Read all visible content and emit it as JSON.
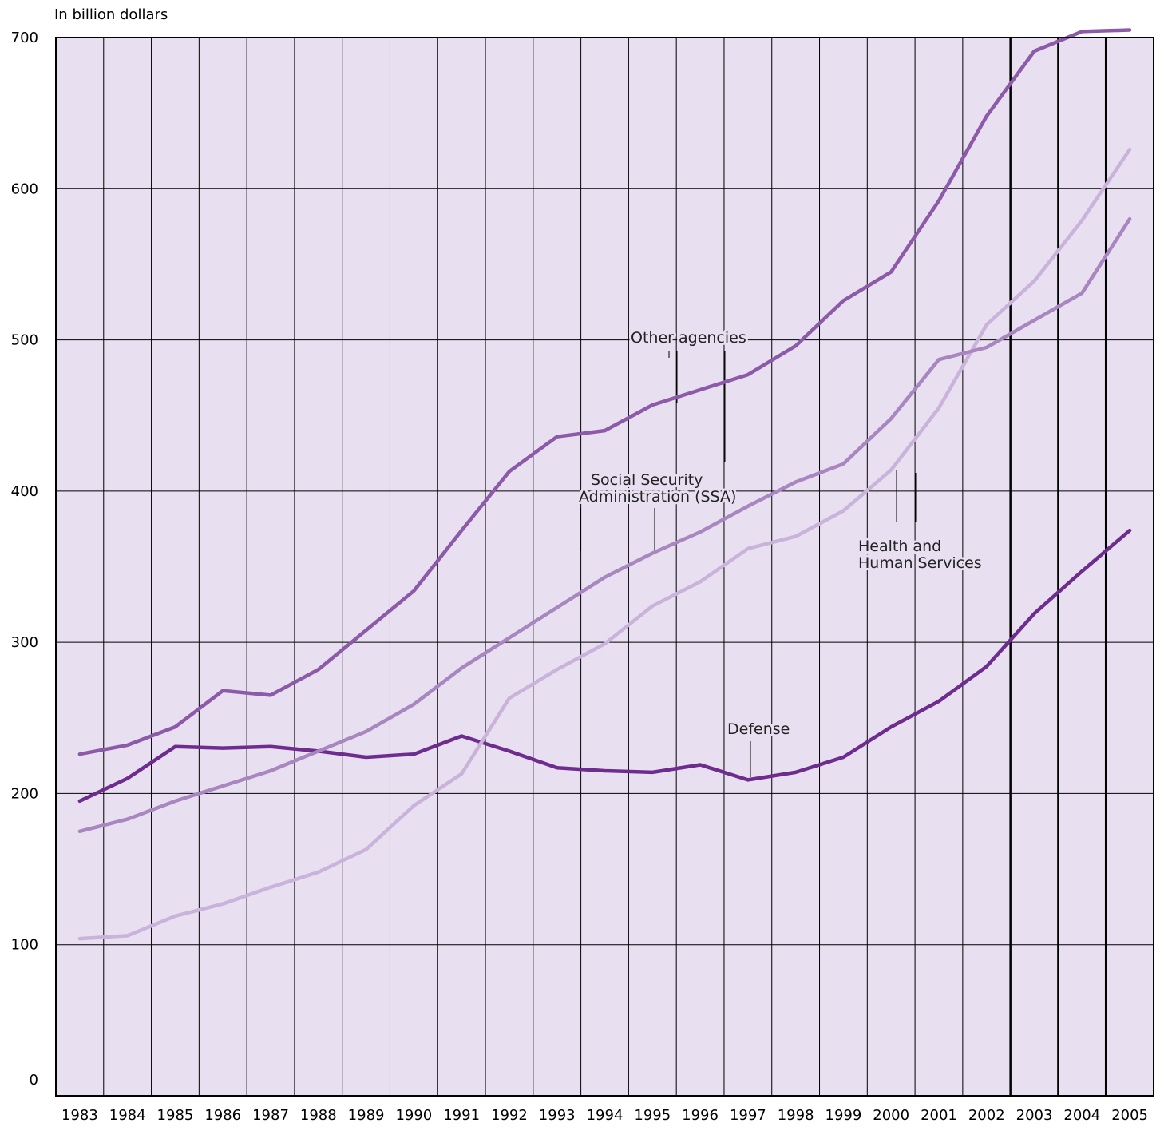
{
  "chart_data": {
    "type": "line",
    "title": "",
    "unit_label": "In billion dollars",
    "xlabel": "",
    "ylabel": "",
    "ylim": [
      0,
      700
    ],
    "y_ticks": [
      0,
      100,
      200,
      300,
      400,
      500,
      600,
      700
    ],
    "x": [
      "1983",
      "1984",
      "1985",
      "1986",
      "1987",
      "1988",
      "1989",
      "1990",
      "1991",
      "1992",
      "1993",
      "1994",
      "1995",
      "1996",
      "1997",
      "1998",
      "1999",
      "2000",
      "2001",
      "2002",
      "2003",
      "2004",
      "2005"
    ],
    "grid": true,
    "background_color": "#e8e0f0",
    "series": [
      {
        "name": "Other agencies",
        "color": "#8c5aa8",
        "values": [
          226,
          232,
          244,
          268,
          265,
          282,
          308,
          334,
          374,
          413,
          436,
          440,
          457,
          467,
          477,
          496,
          526,
          545,
          592,
          648,
          691,
          704,
          705
        ]
      },
      {
        "name": "Social Security Administration (SSA)",
        "color": "#a886c0",
        "values": [
          175,
          183,
          195,
          205,
          215,
          228,
          241,
          259,
          283,
          303,
          323,
          343,
          359,
          373,
          390,
          406,
          418,
          448,
          487,
          495,
          513,
          531,
          580
        ]
      },
      {
        "name": "Health and Human Services",
        "color": "#c9b3da",
        "values": [
          104,
          106,
          119,
          127,
          138,
          148,
          163,
          192,
          213,
          263,
          282,
          299,
          324,
          340,
          362,
          370,
          387,
          414,
          455,
          510,
          539,
          579,
          626
        ]
      },
      {
        "name": "Defense",
        "color": "#6e2c8e",
        "values": [
          195,
          210,
          231,
          230,
          231,
          228,
          224,
          226,
          238,
          228,
          217,
          215,
          214,
          219,
          209,
          214,
          224,
          244,
          261,
          284,
          319,
          347,
          374
        ]
      }
    ],
    "labels": {
      "other": "Other agencies",
      "ssa_line1": "Social Security",
      "ssa_line2": "Administration (SSA)",
      "hhs_line1": "Health and",
      "hhs_line2": "Human Services",
      "defense": "Defense"
    }
  }
}
